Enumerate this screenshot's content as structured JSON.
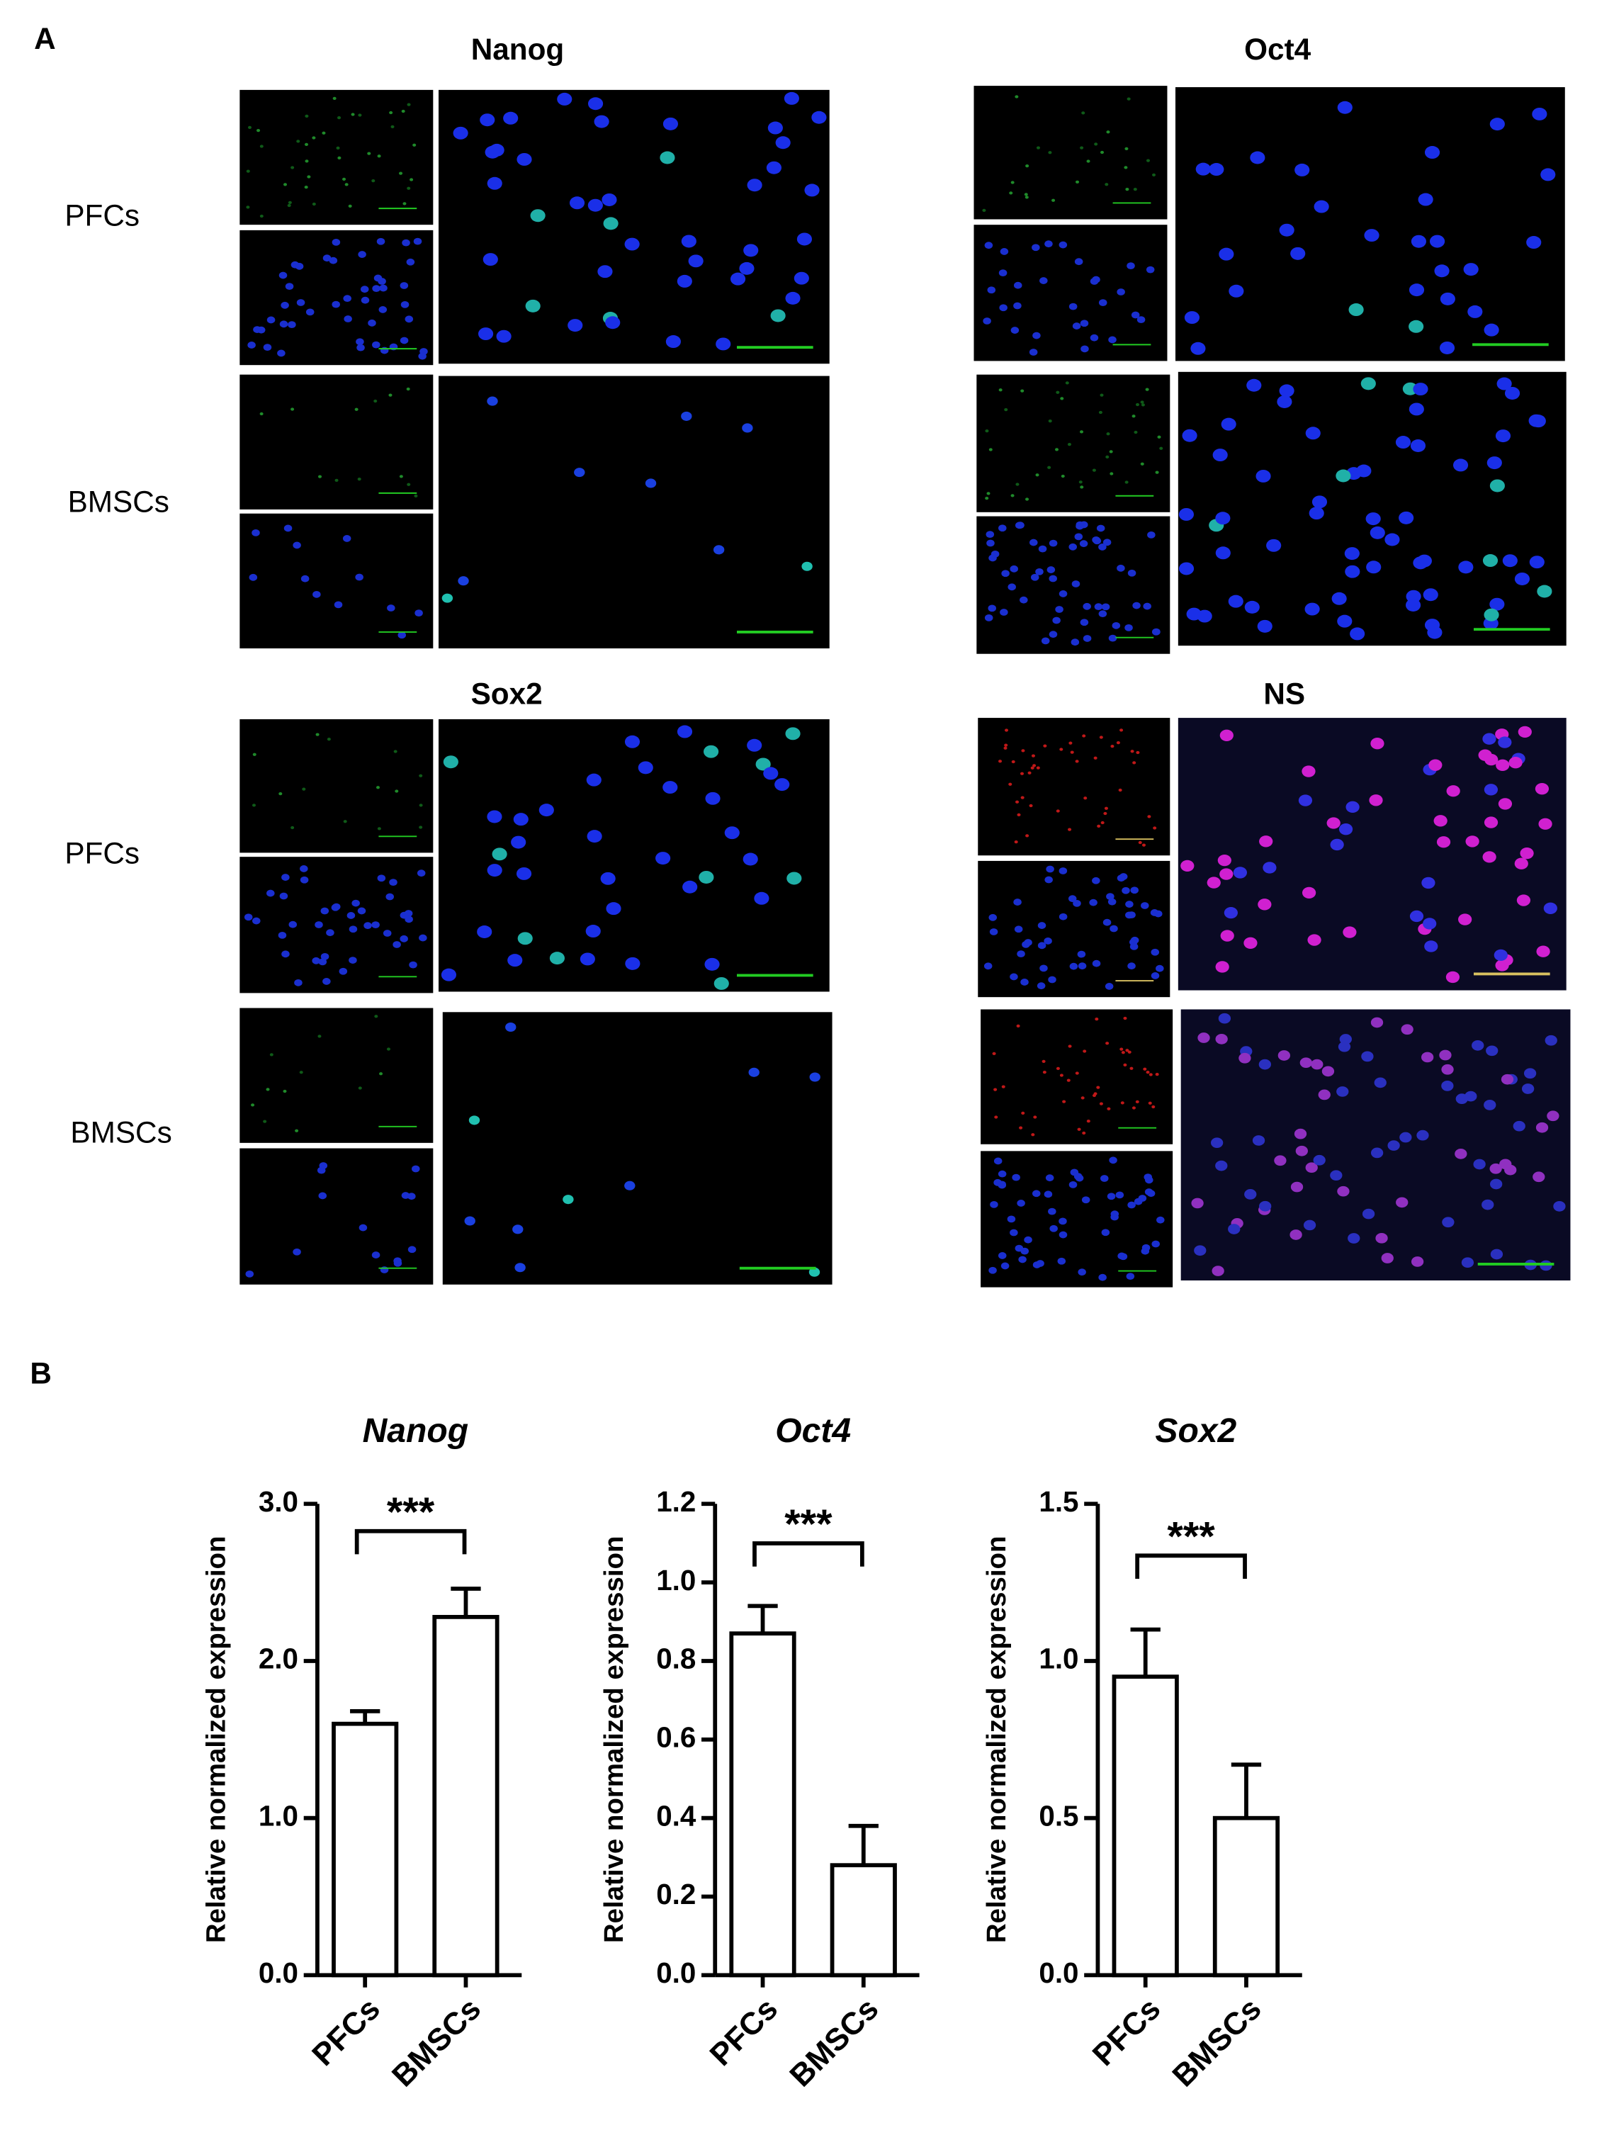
{
  "panel_labels": [
    "A",
    "B"
  ],
  "panel_a": {
    "titles": [
      "Nanog",
      "Oct4",
      "Sox2",
      "NS"
    ],
    "rows": [
      {
        "label": "PFCs"
      },
      {
        "label": "BMSCs"
      },
      {
        "label": "PFCs"
      },
      {
        "label": "BMSCs"
      }
    ]
  },
  "chart_data": [
    {
      "type": "bar",
      "title": "Nanog",
      "y_label": "Relative normalized expression",
      "categories": [
        "PFCs",
        "BMSCs"
      ],
      "values": [
        1.6,
        2.28
      ],
      "errors": [
        0.08,
        0.18
      ],
      "color": "#ffffff",
      "annotation": "***",
      "ylim": [
        0,
        3
      ],
      "yticks": [
        {
          "value": 0,
          "label": "0.0"
        },
        {
          "value": 1,
          "label": "1.0"
        },
        {
          "value": 2,
          "label": "2.0"
        },
        {
          "value": 3,
          "label": "3.0"
        }
      ]
    },
    {
      "type": "bar",
      "title": "Oct4",
      "y_label": "Relative normalized expression",
      "categories": [
        "PFCs",
        "BMSCs"
      ],
      "values": [
        0.87,
        0.28
      ],
      "errors": [
        0.07,
        0.1
      ],
      "color": "#ffffff",
      "annotation": "***",
      "ylim": [
        0,
        1.2
      ],
      "yticks": [
        {
          "value": 0,
          "label": "0.0"
        },
        0.2,
        0.4,
        0.6,
        0.8,
        {
          "value": 1,
          "label": "1.0"
        },
        1.2
      ]
    },
    {
      "type": "bar",
      "title": "Sox2",
      "y_label": "Relative normalized expression",
      "categories": [
        "PFCs",
        "BMSCs"
      ],
      "values": [
        0.95,
        0.5
      ],
      "errors": [
        0.15,
        0.17
      ],
      "color": "#ffffff",
      "annotation": "***",
      "ylim": [
        0,
        1.5
      ],
      "yticks": [
        {
          "value": 0,
          "label": "0.0"
        },
        0.5,
        {
          "value": 1,
          "label": "1.0"
        },
        1.5
      ]
    }
  ]
}
